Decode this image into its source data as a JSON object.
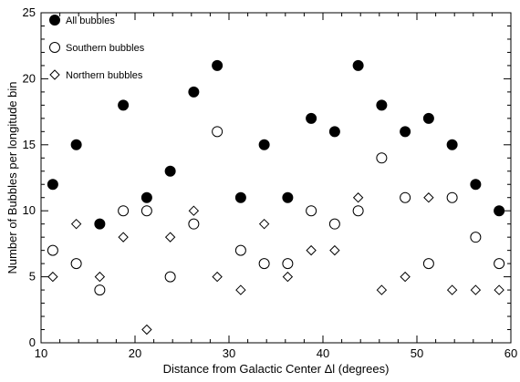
{
  "chart_data": {
    "type": "scatter",
    "xlabel": "Distance from Galactic Center Δl (degrees)",
    "ylabel": "Number of Bubbles per longitude bin",
    "xlim": [
      10,
      60
    ],
    "ylim": [
      0,
      25
    ],
    "xticks": [
      10,
      20,
      30,
      40,
      50,
      60
    ],
    "yticks": [
      0,
      5,
      10,
      15,
      20,
      25
    ],
    "legend_position": "top-left",
    "series": [
      {
        "name": "All bubbles",
        "marker": "filled-circle",
        "x": [
          11.25,
          13.75,
          16.25,
          18.75,
          21.25,
          23.75,
          26.25,
          28.75,
          31.25,
          33.75,
          36.25,
          38.75,
          41.25,
          43.75,
          46.25,
          48.75,
          51.25,
          53.75,
          56.25,
          58.75
        ],
        "y": [
          12,
          15,
          9,
          18,
          11,
          13,
          19,
          21,
          11,
          15,
          11,
          17,
          16,
          21,
          18,
          16,
          17,
          15,
          12,
          10
        ]
      },
      {
        "name": "Southern bubbles",
        "marker": "open-circle",
        "x": [
          11.25,
          13.75,
          16.25,
          18.75,
          21.25,
          23.75,
          26.25,
          28.75,
          31.25,
          33.75,
          36.25,
          38.75,
          41.25,
          43.75,
          46.25,
          48.75,
          51.25,
          53.75,
          56.25,
          58.75
        ],
        "y": [
          7,
          6,
          4,
          10,
          10,
          5,
          9,
          16,
          7,
          6,
          6,
          10,
          9,
          10,
          14,
          11,
          6,
          11,
          8,
          6
        ]
      },
      {
        "name": "Northern bubbles",
        "marker": "open-diamond",
        "x": [
          11.25,
          13.75,
          16.25,
          18.75,
          21.25,
          23.75,
          26.25,
          28.75,
          31.25,
          33.75,
          36.25,
          38.75,
          41.25,
          43.75,
          46.25,
          48.75,
          51.25,
          53.75,
          56.25,
          58.75
        ],
        "y": [
          5,
          9,
          5,
          8,
          1,
          8,
          10,
          5,
          4,
          9,
          5,
          7,
          7,
          11,
          4,
          5,
          11,
          4,
          4,
          4
        ]
      }
    ]
  }
}
